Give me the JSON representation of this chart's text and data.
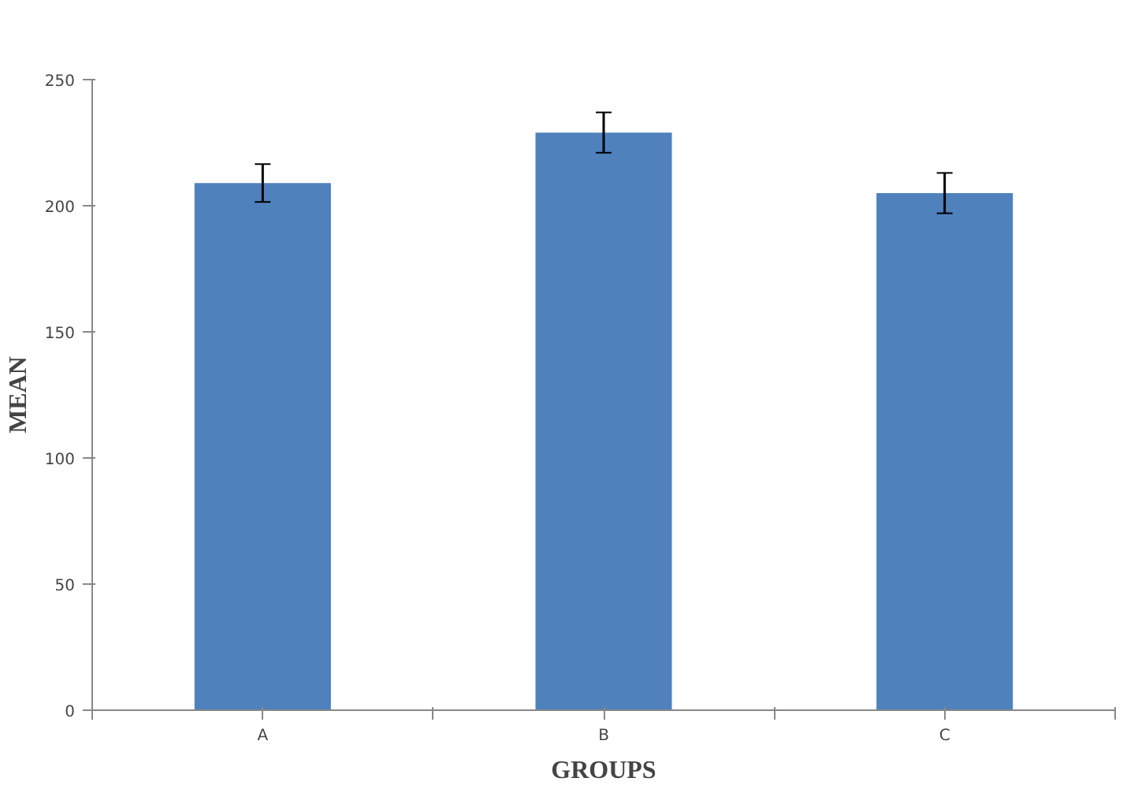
{
  "chart_data": {
    "type": "bar",
    "xlabel": "GROUPS",
    "ylabel": "MEAN",
    "categories": [
      "A",
      "B",
      "C"
    ],
    "values": [
      209,
      229,
      205
    ],
    "errors": [
      7.5,
      8,
      8
    ],
    "color": "#4f81bd",
    "ylim": [
      0,
      250
    ],
    "yticks": [
      0,
      50,
      100,
      150,
      200,
      250
    ],
    "grid": false
  }
}
